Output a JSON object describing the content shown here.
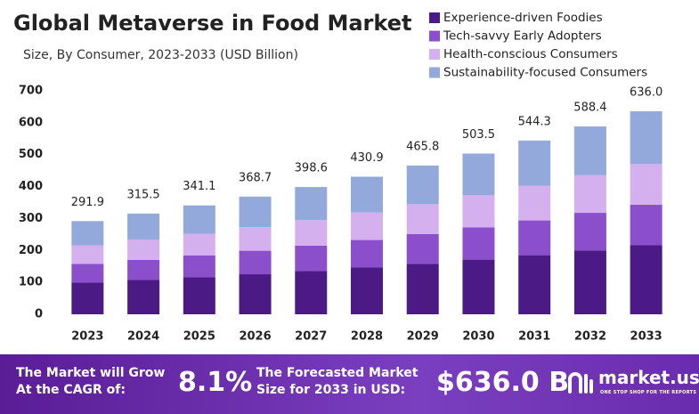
{
  "chart_data": {
    "type": "stacked_bar",
    "title": "Global Metaverse in Food Market",
    "subtitle": "Size, By Consumer, 2023-2033  (USD Billion)",
    "categories": [
      "2023",
      "2024",
      "2025",
      "2026",
      "2027",
      "2028",
      "2029",
      "2030",
      "2031",
      "2032",
      "2033"
    ],
    "series": [
      {
        "name": "Experience-driven Foodies",
        "color": "#4b1a85",
        "values": [
          99.2,
          107.3,
          116.0,
          125.4,
          135.5,
          146.5,
          158.4,
          171.2,
          185.1,
          200.1,
          216.2
        ]
      },
      {
        "name": "Tech-savvy Early Adopters",
        "color": "#8b4fcc",
        "values": [
          58.4,
          63.1,
          68.2,
          73.7,
          79.7,
          86.2,
          93.2,
          100.7,
          108.9,
          117.7,
          127.2
        ]
      },
      {
        "name": "Health-conscious Consumers",
        "color": "#d5b0ef",
        "values": [
          58.4,
          63.1,
          68.2,
          73.7,
          79.7,
          86.2,
          93.2,
          100.7,
          108.9,
          117.7,
          127.2
        ]
      },
      {
        "name": "Sustainability-focused Consumers",
        "color": "#93a9dc",
        "values": [
          75.9,
          82.0,
          88.7,
          95.9,
          103.7,
          112.0,
          121.0,
          130.9,
          141.4,
          152.9,
          165.4
        ]
      }
    ],
    "totals": [
      291.9,
      315.5,
      341.1,
      368.7,
      398.6,
      430.9,
      465.8,
      503.5,
      544.3,
      588.4,
      636.0
    ],
    "totals_labels": [
      "291.9",
      "315.5",
      "341.1",
      "368.7",
      "398.6",
      "430.9",
      "465.8",
      "503.5",
      "544.3",
      "588.4",
      "636.0"
    ],
    "ylim": [
      0,
      700
    ],
    "yticks": [
      0,
      100,
      200,
      300,
      400,
      500,
      600,
      700
    ],
    "grid": false
  },
  "footer": {
    "cagr_text": [
      "The Market will Grow",
      "At the CAGR of:"
    ],
    "cagr": "8.1%",
    "forecast_text": [
      "The Forecasted Market",
      "Size for 2033 in USD:"
    ],
    "forecast": "$636.0 B",
    "brand": "market.us",
    "tagline": "ONE STOP SHOP FOR THE REPORTS"
  }
}
